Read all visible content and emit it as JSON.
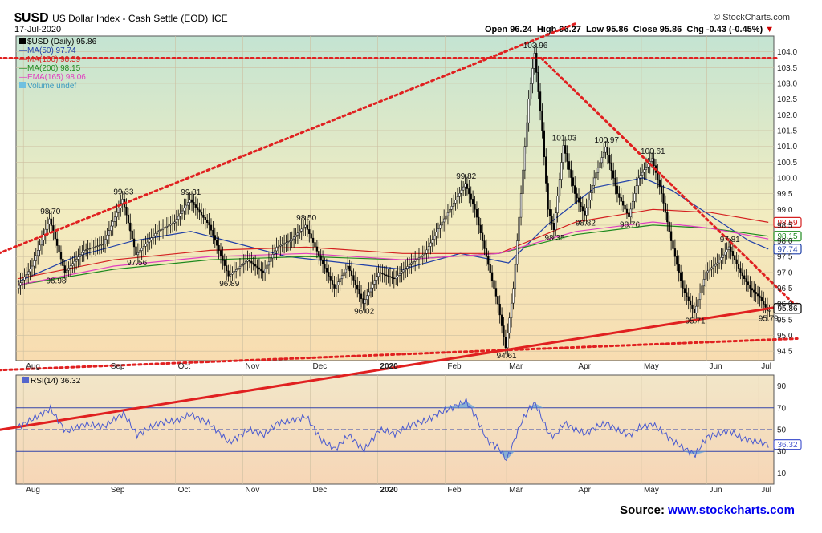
{
  "header": {
    "symbol": "$USD",
    "name": "US Dollar Index - Cash Settle (EOD)",
    "exchange": "ICE",
    "date": "17-Jul-2020",
    "open_label": "Open",
    "open": "96.24",
    "high_label": "High",
    "high": "96.27",
    "low_label": "Low",
    "low": "95.86",
    "close_label": "Close",
    "close": "95.86",
    "chg_label": "Chg",
    "chg": "-0.43 (-0.45%)",
    "brand": "© StockCharts.com"
  },
  "legend": [
    {
      "text": "$USD (Daily) 95.86",
      "color": "#000000"
    },
    {
      "text": "MA(50) 97.74",
      "color": "#1f3fa8"
    },
    {
      "text": "MA(100) 98.59",
      "color": "#d42020"
    },
    {
      "text": "MA(200) 98.15",
      "color": "#1f8a1f"
    },
    {
      "text": "EMA(165) 98.06",
      "color": "#e040c0"
    },
    {
      "text": "Volume undef",
      "color": "#70c0e0"
    }
  ],
  "source": {
    "label": "Source:",
    "link": "www.stockcharts.com"
  },
  "chart_data": [
    {
      "type": "candlestick",
      "title": "$USD US Dollar Index - Cash Settle (EOD) ICE",
      "x_months": [
        "Aug",
        "Sep",
        "Oct",
        "Nov",
        "Dec",
        "2020",
        "Feb",
        "Mar",
        "Apr",
        "May",
        "Jun",
        "Jul"
      ],
      "ylim": [
        94.2,
        104.5
      ],
      "y_ticks": [
        94.5,
        95.0,
        95.5,
        96.0,
        96.5,
        97.0,
        97.5,
        98.0,
        98.5,
        99.0,
        99.5,
        100.0,
        100.5,
        101.0,
        101.5,
        102.0,
        102.5,
        103.0,
        103.5,
        104.0
      ],
      "grid": true,
      "price_points": [
        {
          "x": 0,
          "y": 96.5
        },
        {
          "x": 8,
          "y": 97.2
        },
        {
          "x": 17,
          "y": 98.7
        },
        {
          "x": 25,
          "y": 97.0
        },
        {
          "x": 35,
          "y": 97.7
        },
        {
          "x": 45,
          "y": 97.9
        },
        {
          "x": 55,
          "y": 99.33
        },
        {
          "x": 62,
          "y": 97.56
        },
        {
          "x": 73,
          "y": 98.3
        },
        {
          "x": 82,
          "y": 98.6
        },
        {
          "x": 90,
          "y": 99.31
        },
        {
          "x": 100,
          "y": 98.5
        },
        {
          "x": 110,
          "y": 96.89
        },
        {
          "x": 120,
          "y": 97.4
        },
        {
          "x": 128,
          "y": 97.0
        },
        {
          "x": 135,
          "y": 97.8
        },
        {
          "x": 142,
          "y": 98.0
        },
        {
          "x": 150,
          "y": 98.5
        },
        {
          "x": 158,
          "y": 97.4
        },
        {
          "x": 165,
          "y": 96.5
        },
        {
          "x": 172,
          "y": 97.2
        },
        {
          "x": 180,
          "y": 96.02
        },
        {
          "x": 188,
          "y": 97.0
        },
        {
          "x": 196,
          "y": 96.8
        },
        {
          "x": 205,
          "y": 97.3
        },
        {
          "x": 212,
          "y": 97.6
        },
        {
          "x": 220,
          "y": 98.5
        },
        {
          "x": 228,
          "y": 99.3
        },
        {
          "x": 233,
          "y": 99.82
        },
        {
          "x": 238,
          "y": 99.0
        },
        {
          "x": 244,
          "y": 97.5
        },
        {
          "x": 250,
          "y": 96.0
        },
        {
          "x": 254,
          "y": 94.61
        },
        {
          "x": 258,
          "y": 96.5
        },
        {
          "x": 262,
          "y": 99.5
        },
        {
          "x": 266,
          "y": 102.5
        },
        {
          "x": 269,
          "y": 103.96
        },
        {
          "x": 273,
          "y": 101.5
        },
        {
          "x": 276,
          "y": 99.0
        },
        {
          "x": 279,
          "y": 98.35
        },
        {
          "x": 284,
          "y": 101.03
        },
        {
          "x": 290,
          "y": 99.5
        },
        {
          "x": 295,
          "y": 98.82
        },
        {
          "x": 300,
          "y": 100.0
        },
        {
          "x": 306,
          "y": 100.97
        },
        {
          "x": 312,
          "y": 99.5
        },
        {
          "x": 318,
          "y": 98.76
        },
        {
          "x": 323,
          "y": 100.0
        },
        {
          "x": 330,
          "y": 100.61
        },
        {
          "x": 335,
          "y": 99.5
        },
        {
          "x": 340,
          "y": 98.0
        },
        {
          "x": 346,
          "y": 96.5
        },
        {
          "x": 352,
          "y": 95.71
        },
        {
          "x": 358,
          "y": 97.0
        },
        {
          "x": 364,
          "y": 97.3
        },
        {
          "x": 370,
          "y": 97.81
        },
        {
          "x": 376,
          "y": 97.0
        },
        {
          "x": 381,
          "y": 96.5
        },
        {
          "x": 386,
          "y": 96.2
        },
        {
          "x": 390,
          "y": 95.79
        }
      ],
      "ma50_points": [
        {
          "x": 0,
          "y": 96.7
        },
        {
          "x": 30,
          "y": 97.5
        },
        {
          "x": 60,
          "y": 98.0
        },
        {
          "x": 90,
          "y": 98.3
        },
        {
          "x": 115,
          "y": 97.9
        },
        {
          "x": 140,
          "y": 97.5
        },
        {
          "x": 170,
          "y": 97.3
        },
        {
          "x": 200,
          "y": 97.1
        },
        {
          "x": 230,
          "y": 97.6
        },
        {
          "x": 255,
          "y": 97.3
        },
        {
          "x": 275,
          "y": 98.5
        },
        {
          "x": 300,
          "y": 99.7
        },
        {
          "x": 325,
          "y": 100.0
        },
        {
          "x": 340,
          "y": 99.6
        },
        {
          "x": 360,
          "y": 98.8
        },
        {
          "x": 380,
          "y": 98.0
        },
        {
          "x": 390,
          "y": 97.74
        }
      ],
      "ma100_points": [
        {
          "x": 0,
          "y": 96.8
        },
        {
          "x": 50,
          "y": 97.4
        },
        {
          "x": 100,
          "y": 97.7
        },
        {
          "x": 150,
          "y": 97.8
        },
        {
          "x": 200,
          "y": 97.6
        },
        {
          "x": 250,
          "y": 97.6
        },
        {
          "x": 290,
          "y": 98.6
        },
        {
          "x": 330,
          "y": 99.0
        },
        {
          "x": 360,
          "y": 98.9
        },
        {
          "x": 390,
          "y": 98.59
        }
      ],
      "ma200_points": [
        {
          "x": 0,
          "y": 96.6
        },
        {
          "x": 50,
          "y": 97.1
        },
        {
          "x": 100,
          "y": 97.4
        },
        {
          "x": 150,
          "y": 97.5
        },
        {
          "x": 200,
          "y": 97.4
        },
        {
          "x": 250,
          "y": 97.6
        },
        {
          "x": 290,
          "y": 98.2
        },
        {
          "x": 330,
          "y": 98.5
        },
        {
          "x": 360,
          "y": 98.4
        },
        {
          "x": 390,
          "y": 98.15
        }
      ],
      "ema165_points": [
        {
          "x": 0,
          "y": 96.6
        },
        {
          "x": 50,
          "y": 97.2
        },
        {
          "x": 100,
          "y": 97.5
        },
        {
          "x": 150,
          "y": 97.6
        },
        {
          "x": 200,
          "y": 97.4
        },
        {
          "x": 250,
          "y": 97.6
        },
        {
          "x": 290,
          "y": 98.3
        },
        {
          "x": 330,
          "y": 98.6
        },
        {
          "x": 360,
          "y": 98.4
        },
        {
          "x": 390,
          "y": 98.06
        }
      ],
      "annotations": [
        {
          "label": "98.70",
          "x": 17,
          "y": 98.7
        },
        {
          "label": "96.98",
          "x": 20,
          "y": 96.98
        },
        {
          "label": "99.33",
          "x": 55,
          "y": 99.33
        },
        {
          "label": "97.56",
          "x": 62,
          "y": 97.56
        },
        {
          "label": "99.31",
          "x": 90,
          "y": 99.31
        },
        {
          "label": "96.89",
          "x": 110,
          "y": 96.89
        },
        {
          "label": "98.50",
          "x": 150,
          "y": 98.5
        },
        {
          "label": "96.02",
          "x": 180,
          "y": 96.02
        },
        {
          "label": "99.82",
          "x": 233,
          "y": 99.82
        },
        {
          "label": "94.61",
          "x": 254,
          "y": 94.61
        },
        {
          "label": "103.96",
          "x": 269,
          "y": 103.96
        },
        {
          "label": "98.35",
          "x": 279,
          "y": 98.35
        },
        {
          "label": "101.03",
          "x": 284,
          "y": 101.03
        },
        {
          "label": "98.82",
          "x": 295,
          "y": 98.82
        },
        {
          "label": "100.97",
          "x": 306,
          "y": 100.97
        },
        {
          "label": "98.76",
          "x": 318,
          "y": 98.76
        },
        {
          "label": "100.61",
          "x": 330,
          "y": 100.61
        },
        {
          "label": "95.71",
          "x": 352,
          "y": 95.71
        },
        {
          "label": "97.81",
          "x": 370,
          "y": 97.81
        },
        {
          "label": "95.79",
          "x": 390,
          "y": 95.79
        }
      ],
      "right_tags": [
        {
          "label": "98.59",
          "y": 98.59,
          "color": "#d42020"
        },
        {
          "label": "98.15",
          "y": 98.15,
          "color": "#1f8a1f"
        },
        {
          "label": "97.74",
          "y": 97.74,
          "color": "#1f3fa8"
        },
        {
          "label": "95.86",
          "y": 95.86,
          "color": "#000000"
        }
      ],
      "trendlines": [
        {
          "style": "dotted",
          "color": "#e02020",
          "points": [
            {
              "x": -10,
              "y": 97.6
            },
            {
              "x": 290,
              "y": 104.9
            }
          ]
        },
        {
          "style": "dotted",
          "color": "#e02020",
          "points": [
            {
              "x": -10,
              "y": 103.8
            },
            {
              "x": 395,
              "y": 103.8
            }
          ]
        },
        {
          "style": "dotted",
          "color": "#e02020",
          "points": [
            {
              "x": 272,
              "y": 103.8
            },
            {
              "x": 405,
              "y": 95.9
            }
          ]
        },
        {
          "style": "dotted",
          "color": "#e02020",
          "points": [
            {
              "x": -10,
              "y": 93.9
            },
            {
              "x": 405,
              "y": 94.9
            }
          ]
        },
        {
          "style": "solid",
          "color": "#e02020",
          "points": [
            {
              "x": -10,
              "y": 92.0
            },
            {
              "x": 405,
              "y": 96.0
            }
          ]
        }
      ]
    },
    {
      "type": "line",
      "title": "RSI(14) 36.32",
      "ylim": [
        0,
        100
      ],
      "y_ticks": [
        10,
        30,
        50,
        70,
        90
      ],
      "reference_lines": [
        30,
        50,
        70
      ],
      "last_value": "36.32",
      "points": [
        {
          "x": 0,
          "y": 52
        },
        {
          "x": 10,
          "y": 62
        },
        {
          "x": 17,
          "y": 69
        },
        {
          "x": 25,
          "y": 48
        },
        {
          "x": 35,
          "y": 55
        },
        {
          "x": 45,
          "y": 53
        },
        {
          "x": 55,
          "y": 65
        },
        {
          "x": 62,
          "y": 45
        },
        {
          "x": 73,
          "y": 56
        },
        {
          "x": 82,
          "y": 58
        },
        {
          "x": 90,
          "y": 64
        },
        {
          "x": 100,
          "y": 55
        },
        {
          "x": 110,
          "y": 38
        },
        {
          "x": 120,
          "y": 50
        },
        {
          "x": 128,
          "y": 45
        },
        {
          "x": 135,
          "y": 56
        },
        {
          "x": 142,
          "y": 58
        },
        {
          "x": 150,
          "y": 62
        },
        {
          "x": 158,
          "y": 40
        },
        {
          "x": 165,
          "y": 32
        },
        {
          "x": 172,
          "y": 45
        },
        {
          "x": 180,
          "y": 31
        },
        {
          "x": 188,
          "y": 50
        },
        {
          "x": 196,
          "y": 46
        },
        {
          "x": 205,
          "y": 55
        },
        {
          "x": 212,
          "y": 58
        },
        {
          "x": 220,
          "y": 66
        },
        {
          "x": 228,
          "y": 72
        },
        {
          "x": 233,
          "y": 76
        },
        {
          "x": 238,
          "y": 62
        },
        {
          "x": 244,
          "y": 40
        },
        {
          "x": 250,
          "y": 33
        },
        {
          "x": 254,
          "y": 22
        },
        {
          "x": 258,
          "y": 40
        },
        {
          "x": 262,
          "y": 58
        },
        {
          "x": 266,
          "y": 70
        },
        {
          "x": 269,
          "y": 74
        },
        {
          "x": 273,
          "y": 58
        },
        {
          "x": 276,
          "y": 46
        },
        {
          "x": 279,
          "y": 44
        },
        {
          "x": 284,
          "y": 56
        },
        {
          "x": 290,
          "y": 50
        },
        {
          "x": 295,
          "y": 46
        },
        {
          "x": 300,
          "y": 52
        },
        {
          "x": 306,
          "y": 56
        },
        {
          "x": 312,
          "y": 49
        },
        {
          "x": 318,
          "y": 45
        },
        {
          "x": 323,
          "y": 52
        },
        {
          "x": 330,
          "y": 55
        },
        {
          "x": 335,
          "y": 48
        },
        {
          "x": 340,
          "y": 40
        },
        {
          "x": 346,
          "y": 33
        },
        {
          "x": 352,
          "y": 27
        },
        {
          "x": 358,
          "y": 43
        },
        {
          "x": 364,
          "y": 46
        },
        {
          "x": 370,
          "y": 49
        },
        {
          "x": 376,
          "y": 42
        },
        {
          "x": 381,
          "y": 40
        },
        {
          "x": 386,
          "y": 38
        },
        {
          "x": 390,
          "y": 36.32
        }
      ],
      "x_months": [
        "Aug",
        "Sep",
        "Oct",
        "Nov",
        "Dec",
        "2020",
        "Feb",
        "Mar",
        "Apr",
        "May",
        "Jun",
        "Jul"
      ]
    }
  ]
}
